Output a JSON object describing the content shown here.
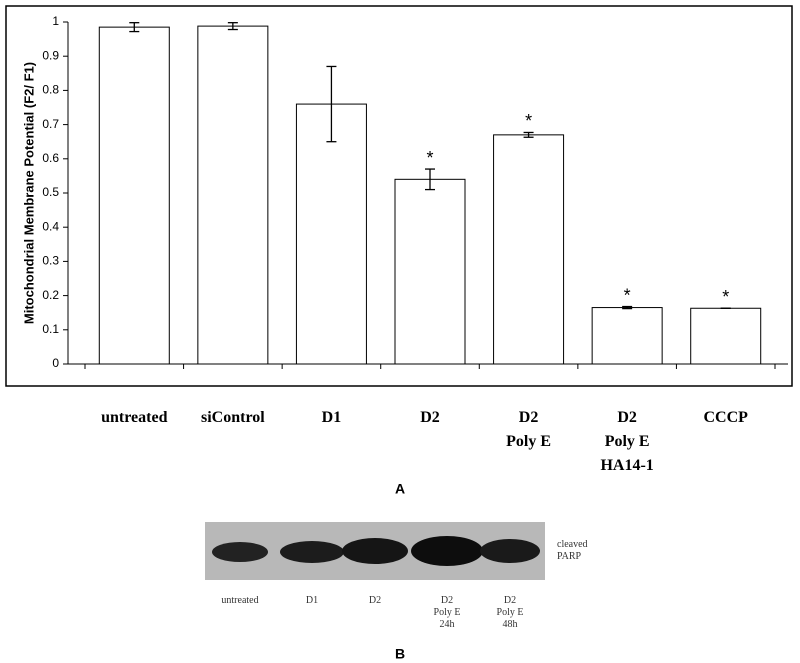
{
  "chart_data": {
    "type": "bar",
    "y_label": "Mitochondrial Membrane Potential (F2/ F1)",
    "panel_label": "A",
    "categories": [
      [
        "untreated"
      ],
      [
        "siControl"
      ],
      [
        "D1"
      ],
      [
        "D2"
      ],
      [
        "D2",
        "Poly E"
      ],
      [
        "D2",
        "Poly E",
        "HA14-1"
      ],
      [
        "CCCP"
      ]
    ],
    "values": [
      0.985,
      0.988,
      0.76,
      0.54,
      0.67,
      0.165,
      0.163
    ],
    "errors": [
      0.013,
      0.01,
      0.11,
      0.03,
      0.007,
      0.003,
      0
    ],
    "markers": [
      null,
      null,
      null,
      "*",
      "*",
      "*",
      "*"
    ],
    "color": "#ffffff",
    "ylim": [
      0,
      1
    ],
    "yticks": [
      0,
      0.1,
      0.2,
      0.3,
      0.4,
      0.5,
      0.6,
      0.7,
      0.8,
      0.9,
      1
    ]
  },
  "blot": {
    "band_label": [
      "cleaved",
      "PARP"
    ],
    "panel_label": "B",
    "lanes": [
      [
        "untreated"
      ],
      [
        "D1"
      ],
      [
        "D2"
      ],
      [
        "D2",
        "Poly E",
        "24h"
      ],
      [
        "D2",
        "Poly E",
        "48h"
      ]
    ]
  }
}
